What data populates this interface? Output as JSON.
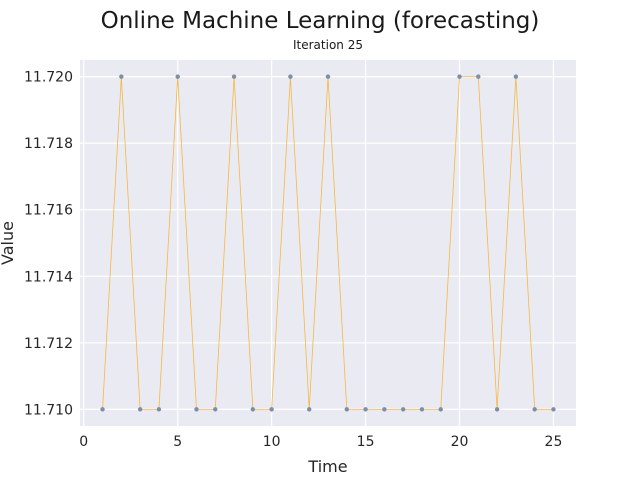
{
  "chart_data": {
    "type": "line",
    "title": "Online Machine Learning (forecasting)",
    "subtitle": "Iteration 25",
    "xlabel": "Time",
    "ylabel": "Value",
    "xlim": [
      -0.2,
      26.2
    ],
    "ylim": [
      11.7095,
      11.7205
    ],
    "xticks": [
      0,
      5,
      10,
      15,
      20,
      25
    ],
    "yticks": [
      11.71,
      11.712,
      11.714,
      11.716,
      11.718,
      11.72
    ],
    "ytick_labels": [
      "11.710",
      "11.712",
      "11.714",
      "11.716",
      "11.718",
      "11.720"
    ],
    "grid": true,
    "series": [
      {
        "x": [
          1,
          2,
          3,
          4,
          5,
          6,
          7,
          8,
          9,
          10,
          11,
          12,
          13,
          14,
          15,
          16,
          17,
          18,
          19,
          20,
          21,
          22,
          23,
          24,
          25
        ],
        "values": [
          11.71,
          11.72,
          11.71,
          11.71,
          11.72,
          11.71,
          11.71,
          11.72,
          11.71,
          11.71,
          11.72,
          11.71,
          11.72,
          11.71,
          11.71,
          11.71,
          11.71,
          11.71,
          11.71,
          11.72,
          11.72,
          11.71,
          11.72,
          11.71,
          11.71
        ],
        "line_color": "#f5b942",
        "marker_color": "#7d8fa8"
      }
    ],
    "background": "#eaeaf2"
  }
}
